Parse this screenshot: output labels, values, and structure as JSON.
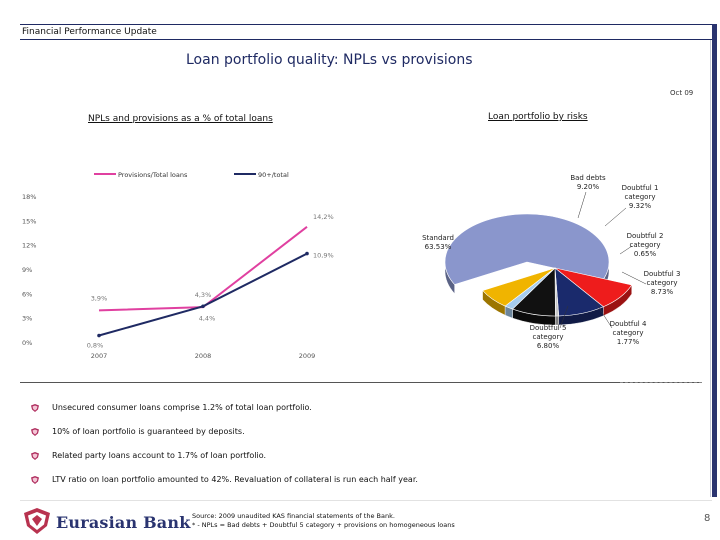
{
  "header": {
    "section": "Financial Performance Update"
  },
  "slide": {
    "title": "Loan portfolio quality: NPLs vs provisions",
    "date": "Oct 09",
    "left_subtitle": "NPLs and provisions as a % of total loans",
    "right_subtitle": "Loan portfolio by risks"
  },
  "chart_data": [
    {
      "type": "line",
      "title": "NPLs and provisions as a % of total loans",
      "categories": [
        "2007",
        "2008",
        "2009"
      ],
      "y_ticks": [
        "18%",
        "15%",
        "12%",
        "9%",
        "6%",
        "3%",
        "0%"
      ],
      "ylim": [
        0,
        18
      ],
      "series": [
        {
          "name": "Provisions/Total loans",
          "color": "#e040a0",
          "values": [
            3.9,
            4.3,
            14.2
          ],
          "labels": [
            "3,9%",
            "4,3%",
            "14,2%"
          ]
        },
        {
          "name": "90+/total",
          "color": "#1f2a63",
          "values": [
            0.8,
            4.4,
            10.9
          ],
          "labels": [
            "0,8%",
            "4,4%",
            "10,9%"
          ]
        }
      ]
    },
    {
      "type": "pie",
      "title": "Loan portfolio by risks",
      "slices": [
        {
          "label": "Standard",
          "value_label": "63.53%",
          "value": 63.53,
          "color": "#8a96cc"
        },
        {
          "label": "Bad debts",
          "value_label": "9.20%",
          "value": 9.2,
          "color": "#ee1c1c"
        },
        {
          "label": "Doubtful 1 category",
          "value_label": "9.32%",
          "value": 9.32,
          "color": "#1a2a6c"
        },
        {
          "label": "Doubtful 2 category",
          "value_label": "0.65%",
          "value": 0.65,
          "color": "#c8c8c8"
        },
        {
          "label": "Doubtful 3 category",
          "value_label": "8.73%",
          "value": 8.73,
          "color": "#111111"
        },
        {
          "label": "Doubtful 4 category",
          "value_label": "1.77%",
          "value": 1.77,
          "color": "#a6ccee"
        },
        {
          "label": "Doubtful 5 category",
          "value_label": "6.80%",
          "value": 6.8,
          "color": "#f0b400"
        }
      ]
    }
  ],
  "bullets": [
    "Unsecured consumer loans comprise 1.2% of total loan portfolio.",
    "10% of loan portfolio is guaranteed by deposits.",
    "Related party loans account to 1.7% of loan portfolio.",
    "LTV ratio on loan portfolio amounted to 42%. Revaluation of collateral is run each half year."
  ],
  "footer": {
    "logo": "Eurasian Bank",
    "source_line1": "Source: 2009 unaudited KAS financial statements of the Bank.",
    "source_line2": "* - NPLs = Bad debts + Doubtful 5 category + provisions on homogeneous loans",
    "page": "8"
  },
  "colors": {
    "brand": "#2a3470",
    "accent": "#c0392b"
  }
}
